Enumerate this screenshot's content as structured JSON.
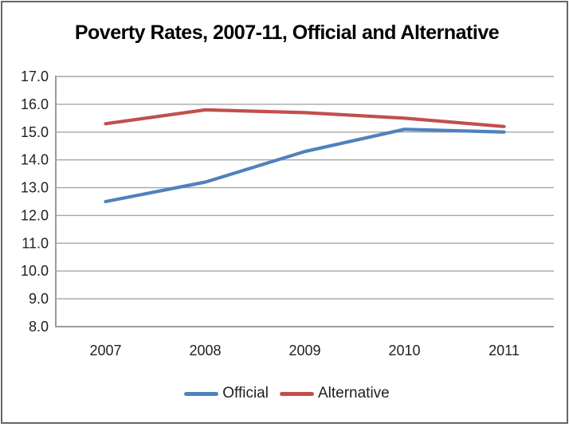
{
  "window": {
    "background": "#ffffff",
    "border_color": "#666666"
  },
  "chart_data": {
    "type": "line",
    "title": "Poverty Rates, 2007-11, Official and Alternative",
    "categories": [
      "2007",
      "2008",
      "2009",
      "2010",
      "2011"
    ],
    "series": [
      {
        "name": "Official",
        "color": "#4F81BD",
        "values": [
          12.5,
          13.2,
          14.3,
          15.1,
          15.0
        ]
      },
      {
        "name": "Alternative",
        "color": "#C0504D",
        "values": [
          15.3,
          15.8,
          15.7,
          15.5,
          15.2
        ]
      }
    ],
    "xlabel": "",
    "ylabel": "",
    "ylim": [
      8.0,
      17.0
    ],
    "y_tick_step": 1.0,
    "y_tick_labels": [
      "8.0",
      "9.0",
      "10.0",
      "11.0",
      "12.0",
      "13.0",
      "14.0",
      "15.0",
      "16.0",
      "17.0"
    ],
    "grid": true,
    "gridline_color": "#a6a6a6",
    "axis_line_color": "#9b9b9b",
    "axis_text_color": "#1f1f1f",
    "legend_position": "bottom"
  }
}
